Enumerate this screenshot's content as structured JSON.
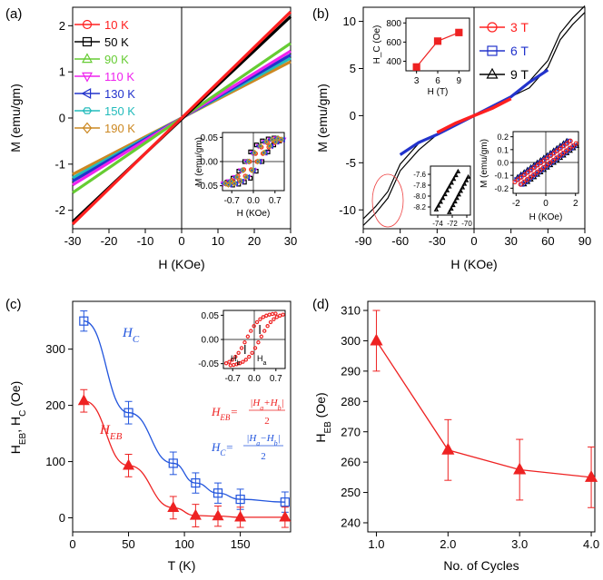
{
  "figure": {
    "panels": {
      "a": {
        "label": "(a)"
      },
      "b": {
        "label": "(b)"
      },
      "c": {
        "label": "(c)"
      },
      "d": {
        "label": "(d)"
      }
    }
  },
  "chart_data": [
    {
      "id": "a",
      "type": "line",
      "xlabel": "H (KOe)",
      "ylabel": "M (emu/gm)",
      "xlim": [
        -30,
        30
      ],
      "ylim": [
        -2.4,
        2.4
      ],
      "xticks": [
        "-30",
        "-20",
        "-10",
        "0",
        "10",
        "20",
        "30"
      ],
      "yticks": [
        "-2",
        "-1",
        "0",
        "1",
        "2"
      ],
      "series": [
        {
          "name": "10 K",
          "color": "#ff2020",
          "marker": "circle",
          "x": [
            -30,
            30
          ],
          "y": [
            -2.3,
            2.3
          ]
        },
        {
          "name": "50 K",
          "color": "#000000",
          "marker": "square",
          "x": [
            -30,
            30
          ],
          "y": [
            -2.25,
            2.2
          ]
        },
        {
          "name": "90 K",
          "color": "#66cc33",
          "marker": "triangle-up",
          "x": [
            -30,
            30
          ],
          "y": [
            -1.62,
            1.62
          ]
        },
        {
          "name": "110 K",
          "color": "#ee22ee",
          "marker": "triangle-down",
          "x": [
            -30,
            30
          ],
          "y": [
            -1.45,
            1.45
          ]
        },
        {
          "name": "130 K",
          "color": "#2233cc",
          "marker": "triangle-left",
          "x": [
            -30,
            30
          ],
          "y": [
            -1.37,
            1.37
          ]
        },
        {
          "name": "150 K",
          "color": "#22bbbb",
          "marker": "hexagon",
          "x": [
            -30,
            30
          ],
          "y": [
            -1.3,
            1.3
          ]
        },
        {
          "name": "190 K",
          "color": "#cc8822",
          "marker": "diamond",
          "x": [
            -30,
            30
          ],
          "y": [
            -1.22,
            1.22
          ]
        }
      ],
      "inset": {
        "xlabel": "H (KOe)",
        "ylabel": "M (emu/gm)",
        "xticks": [
          "-0.7",
          "0.0",
          "0.7"
        ],
        "yticks": [
          "0.05",
          "0.00",
          "-0.05"
        ],
        "xlim": [
          -1,
          1
        ],
        "ylim": [
          -0.06,
          0.06
        ]
      }
    },
    {
      "id": "b",
      "type": "line",
      "xlabel": "H (KOe)",
      "ylabel": "M (emu/gm)",
      "xlim": [
        -90,
        90
      ],
      "ylim": [
        -12,
        11.5
      ],
      "xticks": [
        "-90",
        "-60",
        "-30",
        "0",
        "30",
        "60",
        "90"
      ],
      "yticks": [
        "10",
        "5",
        "0",
        "-5",
        "-10"
      ],
      "series": [
        {
          "name": "3 T",
          "color": "#ff2020",
          "marker": "circle",
          "x": [
            -30,
            -15,
            0,
            15,
            30
          ],
          "y": [
            -1.8,
            -0.8,
            0,
            0.8,
            1.8
          ]
        },
        {
          "name": "6 T",
          "color": "#2233cc",
          "marker": "square",
          "x": [
            -60,
            -45,
            -30,
            0,
            30,
            45,
            60
          ],
          "y": [
            -4.5,
            -3.2,
            -2.0,
            0,
            2.0,
            3.2,
            4.5
          ]
        },
        {
          "name": "9 T",
          "color": "#000000",
          "marker": "triangle-up",
          "x": [
            -90,
            -80,
            -70,
            -60,
            -45,
            -30,
            0,
            30,
            45,
            60,
            70,
            80,
            90
          ],
          "y": [
            -11.3,
            -10,
            -8.4,
            -5.5,
            -3.3,
            -2.0,
            0,
            2.0,
            3.3,
            5.5,
            8.4,
            10,
            11.3
          ]
        }
      ],
      "inset_hc": {
        "xlabel": "H (T)",
        "ylabel": "H_C (Oe)",
        "xticks": [
          "3",
          "6",
          "9"
        ],
        "yticks": [
          "800",
          "600",
          "400"
        ],
        "x": [
          3,
          6,
          9
        ],
        "y": [
          340,
          610,
          700
        ],
        "xlim": [
          1.5,
          10.5
        ],
        "ylim": [
          300,
          850
        ]
      },
      "inset_zoom": {
        "xticks": [
          "-74",
          "-72",
          "-70"
        ],
        "yticks": [
          "-7.6",
          "-7.8",
          "-8.0",
          "-8.2"
        ]
      },
      "inset_loop": {
        "xlabel": "H (KOe)",
        "ylabel": "M (emu/gm)",
        "xticks": [
          "-2",
          "0",
          "2"
        ],
        "yticks": [
          "0.2",
          "0.1",
          "0.0",
          "-0.1",
          "-0.2"
        ]
      }
    },
    {
      "id": "c",
      "type": "line",
      "xlabel": "T (K)",
      "ylabel_main": "H",
      "ylabel_sub1": "EB",
      "ylabel_mid": ", H",
      "ylabel_sub2": "C",
      "ylabel_end": " (Oe)",
      "xlim": [
        0,
        195
      ],
      "ylim": [
        -25,
        385
      ],
      "xticks": [
        "0",
        "50",
        "100",
        "150"
      ],
      "yticks": [
        "300",
        "200",
        "100",
        "0"
      ],
      "series": [
        {
          "name": "H_C",
          "color": "#2255dd",
          "marker": "square",
          "x": [
            10,
            50,
            90,
            110,
            130,
            150,
            190
          ],
          "y": [
            350,
            187,
            97,
            62,
            44,
            33,
            28
          ],
          "err": [
            18,
            20,
            20,
            18,
            18,
            18,
            18
          ]
        },
        {
          "name": "H_EB",
          "color": "#ee2222",
          "marker": "triangle",
          "x": [
            10,
            50,
            90,
            110,
            130,
            150,
            190
          ],
          "y": [
            208,
            93,
            18,
            4,
            3,
            1,
            1
          ],
          "err": [
            20,
            20,
            20,
            20,
            18,
            18,
            18
          ]
        }
      ],
      "labels": {
        "hc": "H",
        "hc_sub": "C",
        "heb": "H",
        "heb_sub": "EB"
      },
      "formula_eb": {
        "lhs": "H",
        "lhs_sub": "EB",
        "num": "|H",
        "num_a": "a",
        "num_mid": "+H",
        "num_b": "b",
        "num_end": "|",
        "den": "2"
      },
      "formula_c": {
        "lhs": "H",
        "lhs_sub": "C",
        "num": "|H",
        "num_a": "a",
        "num_mid": "−H",
        "num_b": "b",
        "num_end": "|",
        "den": "2"
      },
      "inset": {
        "xticks": [
          "-0.7",
          "0.0",
          "0.7"
        ],
        "yticks": [
          "0.05",
          "0.00",
          "-0.05"
        ],
        "hb": "H",
        "hb_sub": "b",
        "ha": "H",
        "ha_sub": "a"
      }
    },
    {
      "id": "d",
      "type": "line",
      "xlabel": "No. of Cycles",
      "ylabel_main": "H",
      "ylabel_sub": "EB",
      "ylabel_end": " (Oe)",
      "xlim": [
        0.88,
        4.05
      ],
      "ylim": [
        237,
        313
      ],
      "xticks": [
        "1.0",
        "2.0",
        "3.0",
        "4.0"
      ],
      "yticks": [
        "310",
        "300",
        "290",
        "280",
        "270",
        "260",
        "250",
        "240"
      ],
      "series": [
        {
          "name": "H_EB",
          "color": "#ee2222",
          "marker": "triangle",
          "x": [
            1,
            2,
            3,
            4
          ],
          "y": [
            300,
            264,
            257.5,
            255
          ],
          "err": [
            10,
            10,
            10,
            10
          ]
        }
      ]
    }
  ]
}
